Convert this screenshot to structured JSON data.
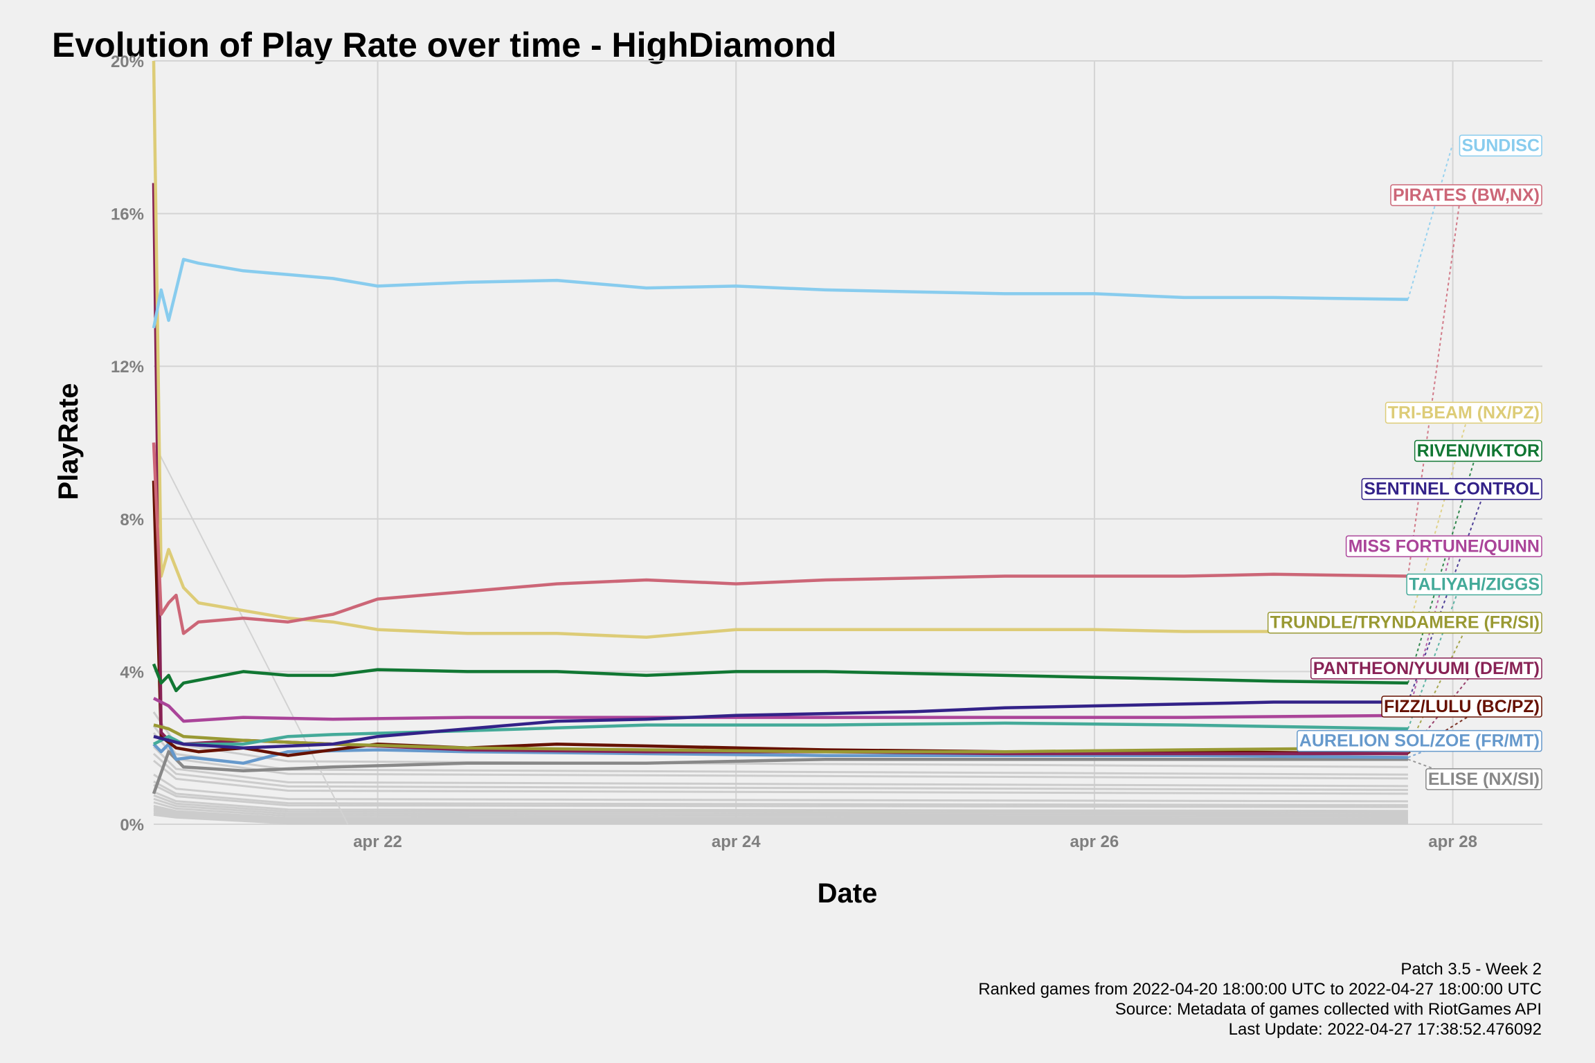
{
  "chart_data": {
    "type": "line",
    "title": "Evolution of Play Rate over time - HighDiamond",
    "xlabel": "Date",
    "ylabel": "PlayRate",
    "x_ticks": [
      "apr 22",
      "apr 24",
      "apr 26",
      "apr 28"
    ],
    "y_ticks": [
      "0%",
      "4%",
      "8%",
      "12%",
      "16%",
      "20%"
    ],
    "xlim": [
      "2022-04-20T18:00",
      "2022-04-28T12:00"
    ],
    "ylim": [
      0,
      20
    ],
    "grid": true,
    "legend": "direct labels at right edge",
    "series": [
      {
        "name": "SUNDISC",
        "color": "#88CCEE",
        "label_y": 17.8,
        "points": [
          [
            "2022-04-20T18:00",
            13.0
          ],
          [
            "2022-04-20T19:00",
            14.0
          ],
          [
            "2022-04-20T20:00",
            13.2
          ],
          [
            "2022-04-20T21:00",
            14.0
          ],
          [
            "2022-04-20T22:00",
            14.8
          ],
          [
            "2022-04-21T00:00",
            14.7
          ],
          [
            "2022-04-21T06:00",
            14.5
          ],
          [
            "2022-04-21T12:00",
            14.4
          ],
          [
            "2022-04-21T18:00",
            14.3
          ],
          [
            "2022-04-22T00:00",
            14.1
          ],
          [
            "2022-04-22T12:00",
            14.2
          ],
          [
            "2022-04-23T00:00",
            14.25
          ],
          [
            "2022-04-23T12:00",
            14.05
          ],
          [
            "2022-04-24T00:00",
            14.1
          ],
          [
            "2022-04-24T12:00",
            14.0
          ],
          [
            "2022-04-25T00:00",
            13.95
          ],
          [
            "2022-04-25T12:00",
            13.9
          ],
          [
            "2022-04-26T00:00",
            13.9
          ],
          [
            "2022-04-26T12:00",
            13.8
          ],
          [
            "2022-04-27T00:00",
            13.8
          ],
          [
            "2022-04-27T18:00",
            13.75
          ]
        ]
      },
      {
        "name": "PIRATES (BW,NX)",
        "color": "#CC6677",
        "label_y": 16.5,
        "points": [
          [
            "2022-04-20T18:00",
            10.0
          ],
          [
            "2022-04-20T19:00",
            5.5
          ],
          [
            "2022-04-20T20:00",
            5.8
          ],
          [
            "2022-04-20T21:00",
            6.0
          ],
          [
            "2022-04-20T22:00",
            5.0
          ],
          [
            "2022-04-21T00:00",
            5.3
          ],
          [
            "2022-04-21T06:00",
            5.4
          ],
          [
            "2022-04-21T12:00",
            5.3
          ],
          [
            "2022-04-21T18:00",
            5.5
          ],
          [
            "2022-04-22T00:00",
            5.9
          ],
          [
            "2022-04-22T12:00",
            6.1
          ],
          [
            "2022-04-23T00:00",
            6.3
          ],
          [
            "2022-04-23T12:00",
            6.4
          ],
          [
            "2022-04-24T00:00",
            6.3
          ],
          [
            "2022-04-24T12:00",
            6.4
          ],
          [
            "2022-04-25T00:00",
            6.45
          ],
          [
            "2022-04-25T12:00",
            6.5
          ],
          [
            "2022-04-26T00:00",
            6.5
          ],
          [
            "2022-04-26T12:00",
            6.5
          ],
          [
            "2022-04-27T00:00",
            6.55
          ],
          [
            "2022-04-27T18:00",
            6.5
          ]
        ]
      },
      {
        "name": "TRI-BEAM (NX/PZ)",
        "color": "#DDCC77",
        "label_y": 10.8,
        "points": [
          [
            "2022-04-20T18:00",
            20.0
          ],
          [
            "2022-04-20T19:00",
            6.5
          ],
          [
            "2022-04-20T20:00",
            7.2
          ],
          [
            "2022-04-20T22:00",
            6.2
          ],
          [
            "2022-04-21T00:00",
            5.8
          ],
          [
            "2022-04-21T06:00",
            5.6
          ],
          [
            "2022-04-21T12:00",
            5.4
          ],
          [
            "2022-04-21T18:00",
            5.3
          ],
          [
            "2022-04-22T00:00",
            5.1
          ],
          [
            "2022-04-22T12:00",
            5.0
          ],
          [
            "2022-04-23T00:00",
            5.0
          ],
          [
            "2022-04-23T12:00",
            4.9
          ],
          [
            "2022-04-24T00:00",
            5.1
          ],
          [
            "2022-04-24T12:00",
            5.1
          ],
          [
            "2022-04-25T00:00",
            5.1
          ],
          [
            "2022-04-25T12:00",
            5.1
          ],
          [
            "2022-04-26T00:00",
            5.1
          ],
          [
            "2022-04-26T12:00",
            5.05
          ],
          [
            "2022-04-27T00:00",
            5.05
          ],
          [
            "2022-04-27T18:00",
            5.1
          ]
        ]
      },
      {
        "name": "RIVEN/VIKTOR",
        "color": "#117733",
        "label_y": 9.8,
        "points": [
          [
            "2022-04-20T18:00",
            4.2
          ],
          [
            "2022-04-20T19:00",
            3.7
          ],
          [
            "2022-04-20T20:00",
            3.9
          ],
          [
            "2022-04-20T21:00",
            3.5
          ],
          [
            "2022-04-20T22:00",
            3.7
          ],
          [
            "2022-04-21T06:00",
            4.0
          ],
          [
            "2022-04-21T12:00",
            3.9
          ],
          [
            "2022-04-21T18:00",
            3.9
          ],
          [
            "2022-04-22T00:00",
            4.05
          ],
          [
            "2022-04-22T12:00",
            4.0
          ],
          [
            "2022-04-23T00:00",
            4.0
          ],
          [
            "2022-04-23T12:00",
            3.9
          ],
          [
            "2022-04-24T00:00",
            4.0
          ],
          [
            "2022-04-24T12:00",
            4.0
          ],
          [
            "2022-04-25T00:00",
            3.95
          ],
          [
            "2022-04-25T12:00",
            3.9
          ],
          [
            "2022-04-26T00:00",
            3.85
          ],
          [
            "2022-04-26T12:00",
            3.8
          ],
          [
            "2022-04-27T00:00",
            3.75
          ],
          [
            "2022-04-27T18:00",
            3.7
          ]
        ]
      },
      {
        "name": "SENTINEL CONTROL",
        "color": "#332288",
        "label_y": 8.8,
        "points": [
          [
            "2022-04-20T18:00",
            2.3
          ],
          [
            "2022-04-20T22:00",
            2.1
          ],
          [
            "2022-04-21T06:00",
            2.0
          ],
          [
            "2022-04-21T18:00",
            2.1
          ],
          [
            "2022-04-22T00:00",
            2.3
          ],
          [
            "2022-04-22T12:00",
            2.5
          ],
          [
            "2022-04-23T00:00",
            2.7
          ],
          [
            "2022-04-23T12:00",
            2.75
          ],
          [
            "2022-04-24T00:00",
            2.85
          ],
          [
            "2022-04-24T12:00",
            2.9
          ],
          [
            "2022-04-25T00:00",
            2.95
          ],
          [
            "2022-04-25T12:00",
            3.05
          ],
          [
            "2022-04-26T00:00",
            3.1
          ],
          [
            "2022-04-26T12:00",
            3.15
          ],
          [
            "2022-04-27T00:00",
            3.2
          ],
          [
            "2022-04-27T18:00",
            3.2
          ]
        ]
      },
      {
        "name": "MISS FORTUNE/QUINN",
        "color": "#AA4499",
        "label_y": 7.3,
        "points": [
          [
            "2022-04-20T18:00",
            3.3
          ],
          [
            "2022-04-20T20:00",
            3.1
          ],
          [
            "2022-04-20T22:00",
            2.7
          ],
          [
            "2022-04-21T06:00",
            2.8
          ],
          [
            "2022-04-21T18:00",
            2.75
          ],
          [
            "2022-04-22T12:00",
            2.8
          ],
          [
            "2022-04-23T12:00",
            2.8
          ],
          [
            "2022-04-24T12:00",
            2.8
          ],
          [
            "2022-04-25T12:00",
            2.8
          ],
          [
            "2022-04-26T12:00",
            2.8
          ],
          [
            "2022-04-27T18:00",
            2.85
          ]
        ]
      },
      {
        "name": "TALIYAH/ZIGGS",
        "color": "#44AA99",
        "label_y": 6.3,
        "points": [
          [
            "2022-04-20T18:00",
            2.1
          ],
          [
            "2022-04-20T20:00",
            2.3
          ],
          [
            "2022-04-20T22:00",
            2.1
          ],
          [
            "2022-04-21T06:00",
            2.1
          ],
          [
            "2022-04-21T12:00",
            2.3
          ],
          [
            "2022-04-21T18:00",
            2.35
          ],
          [
            "2022-04-22T12:00",
            2.45
          ],
          [
            "2022-04-23T12:00",
            2.6
          ],
          [
            "2022-04-24T12:00",
            2.6
          ],
          [
            "2022-04-25T12:00",
            2.65
          ],
          [
            "2022-04-26T12:00",
            2.6
          ],
          [
            "2022-04-27T18:00",
            2.5
          ]
        ]
      },
      {
        "name": "TRUNDLE/TRYNDAMERE (FR/SI)",
        "color": "#999933",
        "label_y": 5.3,
        "points": [
          [
            "2022-04-20T18:00",
            2.6
          ],
          [
            "2022-04-20T20:00",
            2.5
          ],
          [
            "2022-04-20T22:00",
            2.3
          ],
          [
            "2022-04-21T06:00",
            2.2
          ],
          [
            "2022-04-21T18:00",
            2.1
          ],
          [
            "2022-04-22T12:00",
            2.0
          ],
          [
            "2022-04-23T12:00",
            1.95
          ],
          [
            "2022-04-24T12:00",
            1.9
          ],
          [
            "2022-04-25T12:00",
            1.9
          ],
          [
            "2022-04-26T12:00",
            1.95
          ],
          [
            "2022-04-27T18:00",
            2.0
          ]
        ]
      },
      {
        "name": "PANTHEON/YUUMI (DE/MT)",
        "color": "#882255",
        "label_y": 4.1,
        "points": [
          [
            "2022-04-20T18:00",
            16.8
          ],
          [
            "2022-04-20T19:00",
            2.4
          ],
          [
            "2022-04-20T20:00",
            2.2
          ],
          [
            "2022-04-20T22:00",
            2.1
          ],
          [
            "2022-04-21T06:00",
            2.2
          ],
          [
            "2022-04-21T18:00",
            2.1
          ],
          [
            "2022-04-22T12:00",
            1.95
          ],
          [
            "2022-04-23T12:00",
            1.9
          ],
          [
            "2022-04-24T12:00",
            1.9
          ],
          [
            "2022-04-25T12:00",
            1.85
          ],
          [
            "2022-04-26T12:00",
            1.85
          ],
          [
            "2022-04-27T18:00",
            1.85
          ]
        ]
      },
      {
        "name": "FIZZ/LULU (BC/PZ)",
        "color": "#661100",
        "label_y": 3.1,
        "points": [
          [
            "2022-04-20T18:00",
            9.0
          ],
          [
            "2022-04-20T19:00",
            2.3
          ],
          [
            "2022-04-20T21:00",
            2.0
          ],
          [
            "2022-04-21T00:00",
            1.9
          ],
          [
            "2022-04-21T06:00",
            2.0
          ],
          [
            "2022-04-21T12:00",
            1.8
          ],
          [
            "2022-04-22T00:00",
            2.1
          ],
          [
            "2022-04-22T12:00",
            2.0
          ],
          [
            "2022-04-23T00:00",
            2.1
          ],
          [
            "2022-04-23T12:00",
            2.05
          ],
          [
            "2022-04-24T12:00",
            1.95
          ],
          [
            "2022-04-25T12:00",
            1.9
          ],
          [
            "2022-04-26T12:00",
            1.9
          ],
          [
            "2022-04-27T18:00",
            1.85
          ]
        ]
      },
      {
        "name": "AURELION SOL/ZOE (FR/MT)",
        "color": "#6699CC",
        "label_y": 2.2,
        "points": [
          [
            "2022-04-20T18:00",
            2.1
          ],
          [
            "2022-04-20T19:00",
            1.9
          ],
          [
            "2022-04-20T20:00",
            2.1
          ],
          [
            "2022-04-20T21:00",
            1.7
          ],
          [
            "2022-04-20T23:00",
            1.75
          ],
          [
            "2022-04-21T06:00",
            1.6
          ],
          [
            "2022-04-21T12:00",
            1.9
          ],
          [
            "2022-04-22T00:00",
            1.95
          ],
          [
            "2022-04-22T12:00",
            1.9
          ],
          [
            "2022-04-23T12:00",
            1.85
          ],
          [
            "2022-04-24T12:00",
            1.8
          ],
          [
            "2022-04-25T12:00",
            1.8
          ],
          [
            "2022-04-26T12:00",
            1.8
          ],
          [
            "2022-04-27T18:00",
            1.75
          ]
        ]
      },
      {
        "name": "ELISE (NX/SI)",
        "color": "#888888",
        "label_y": 1.2,
        "points": [
          [
            "2022-04-20T18:00",
            0.8
          ],
          [
            "2022-04-20T20:00",
            1.9
          ],
          [
            "2022-04-20T22:00",
            1.5
          ],
          [
            "2022-04-21T06:00",
            1.4
          ],
          [
            "2022-04-21T18:00",
            1.5
          ],
          [
            "2022-04-22T12:00",
            1.6
          ],
          [
            "2022-04-23T12:00",
            1.6
          ],
          [
            "2022-04-24T12:00",
            1.7
          ],
          [
            "2022-04-25T12:00",
            1.7
          ],
          [
            "2022-04-26T12:00",
            1.7
          ],
          [
            "2022-04-27T18:00",
            1.7
          ]
        ]
      }
    ],
    "background_series": {
      "color": "#cccccc",
      "final_values": [
        1.5,
        1.3,
        1.2,
        1.0,
        0.9,
        0.8,
        0.6,
        0.5,
        0.45,
        0.35,
        0.3,
        0.25,
        0.2,
        0.15,
        0.12,
        0.1,
        0.08,
        0.05,
        0.03,
        0.02
      ]
    }
  },
  "captions": [
    "Patch 3.5 - Week 2",
    "Ranked games from 2022-04-20 18:00:00 UTC to 2022-04-27 18:00:00 UTC",
    "Source: Metadata of games collected with RiotGames API",
    "Last Update: 2022-04-27 17:38:52.476092"
  ]
}
